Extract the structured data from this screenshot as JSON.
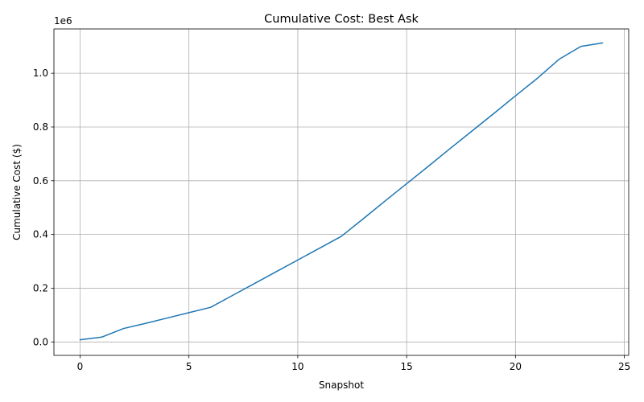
{
  "chart_data": {
    "type": "line",
    "title": "Cumulative Cost: Best Ask",
    "xlabel": "Snapshot",
    "ylabel": "Cumulative Cost ($)",
    "y_offset_label": "1e6",
    "xlim": [
      -1.2,
      25.2
    ],
    "ylim": [
      -0.05,
      1.165
    ],
    "x_ticks": [
      0,
      5,
      10,
      15,
      20,
      25
    ],
    "x_tick_labels": [
      "0",
      "5",
      "10",
      "15",
      "20",
      "25"
    ],
    "y_ticks": [
      0.0,
      0.2,
      0.4,
      0.6,
      0.8,
      1.0
    ],
    "y_tick_labels": [
      "0.0",
      "0.2",
      "0.4",
      "0.6",
      "0.8",
      "1.0"
    ],
    "grid": true,
    "colors": {
      "line": "#1f77b4",
      "grid": "#b0b0b0",
      "axes": "#000000"
    },
    "series": [
      {
        "x": [
          0,
          1,
          2,
          3,
          4,
          5,
          6,
          7,
          8,
          9,
          10,
          11,
          12,
          13,
          14,
          15,
          16,
          17,
          18,
          19,
          20,
          21,
          22,
          23,
          24
        ],
        "values": [
          0.008,
          0.018,
          0.05,
          0.069,
          0.089,
          0.109,
          0.129,
          0.173,
          0.217,
          0.261,
          0.305,
          0.349,
          0.393,
          0.458,
          0.524,
          0.589,
          0.654,
          0.72,
          0.785,
          0.85,
          0.916,
          0.981,
          1.052,
          1.1,
          1.113
        ]
      }
    ]
  }
}
